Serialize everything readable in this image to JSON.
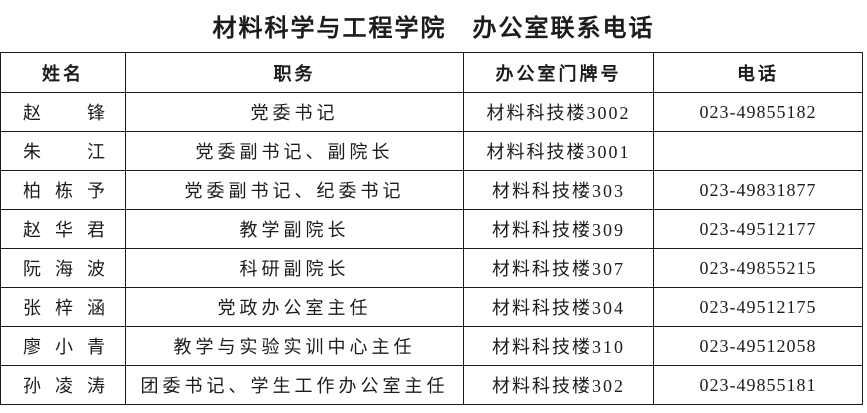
{
  "page_title": "材料科学与工程学院　办公室联系电话",
  "table": {
    "headers": [
      "姓名",
      "职务",
      "办公室门牌号",
      "电话"
    ],
    "rows": [
      {
        "name": "赵锋",
        "position": "党委书记",
        "office": "材料科技楼3002",
        "phone": "023-49855182"
      },
      {
        "name": "朱江",
        "position": "党委副书记、副院长",
        "office": "材料科技楼3001",
        "phone": ""
      },
      {
        "name": "柏栋予",
        "position": "党委副书记、纪委书记",
        "office": "材料科技楼303",
        "phone": "023-49831877"
      },
      {
        "name": "赵华君",
        "position": "教学副院长",
        "office": "材料科技楼309",
        "phone": "023-49512177"
      },
      {
        "name": "阮海波",
        "position": "科研副院长",
        "office": "材料科技楼307",
        "phone": "023-49855215"
      },
      {
        "name": "张梓涵",
        "position": "党政办公室主任",
        "office": "材料科技楼304",
        "phone": "023-49512175"
      },
      {
        "name": "廖小青",
        "position": "教学与实验实训中心主任",
        "office": "材料科技楼310",
        "phone": "023-49512058"
      },
      {
        "name": "孙凌涛",
        "position": "团委书记、学生工作办公室主任",
        "office": "材料科技楼302",
        "phone": "023-49855181"
      }
    ]
  },
  "colors": {
    "text": "#1c1c1c",
    "border": "#1a1a1a",
    "background": "#ffffff"
  }
}
